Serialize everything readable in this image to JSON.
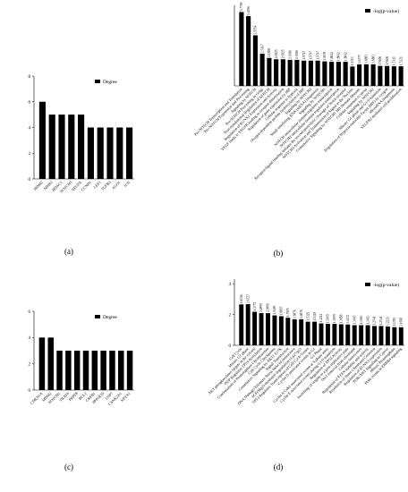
{
  "chart_data": [
    {
      "type": "bar",
      "label": "(a)",
      "categories": [
        "MDM2",
        "MMP2",
        "HDAC1",
        "NOTCH3",
        "VEGFA",
        "CCND1",
        "LEF1",
        "TGFB3",
        "AGO1",
        "JUN"
      ],
      "series": [
        {
          "name": "Degree",
          "color": "#000000",
          "values": [
            6,
            5,
            5,
            5,
            5,
            4,
            4,
            4,
            4,
            4
          ]
        }
      ],
      "ylim": [
        0,
        8
      ],
      "yticks": [
        0,
        2,
        4,
        6,
        8
      ],
      "legend": "upper right",
      "data_labels": false
    },
    {
      "type": "bar",
      "label": "(b)",
      "categories": [
        "Pre-NOTCH Transcription and Translation",
        "Pre-NOTCH Expression and Processing",
        "Signaling by NOTCH",
        "Pre-NOTCH Processing in Golgi",
        "Post-translational Regulation of NOTCH",
        "Regulation of RUNX1 Expression and Activity",
        "VEGF binds to VEGFR leading to receptor dimerization",
        "Regulation of gene expression by HIF",
        "Cellular response to hypoxia",
        "Oxygen-dependent proline hydroxylation of HIF",
        "Signaling by NOTCH3",
        "Small interfering RNA (siRNA) biogenesis",
        "Signaling by NOTCH1",
        "NOTCH intracellular domain regulates transcription",
        "NOTCH2 intracellular domain regulates transcription",
        "Receptor-ligand binding initiates the second proteolytic cleavage of Notch receptor",
        "NOTCH3 Activation and Transmission of Signal to the Nucleus",
        "Constitutive Signaling by NOTCH1 HD Domain Mutants",
        "Cellular responses to stress",
        "Signaling by NOTCH2",
        "Mitotic G1 phase and G1/S transition",
        "Regulation of Hypoxia-inducible Factor (HIF) by oxygen",
        "MicroRNA biogenesis",
        "VEGFR2 mediated cell proliferation"
      ],
      "series": [
        {
          "name": "-log(p-value)",
          "color": "#000000",
          "values": [
            5.7799,
            5.4596,
            3.9554,
            2.5117,
            2.1858,
            2.0825,
            2.0825,
            2.0386,
            2.0386,
            1.9747,
            1.9747,
            1.9747,
            1.9195,
            1.8842,
            1.8842,
            1.8842,
            1.5153,
            1.6777,
            1.6883,
            1.6883,
            1.5606,
            1.5606,
            1.5321,
            1.5321
          ]
        }
      ],
      "ylim": [
        0,
        6.3
      ],
      "legend": "upper right",
      "data_labels": true
    },
    {
      "type": "bar",
      "label": "(c)",
      "categories": [
        "CDKN1A",
        "MDM2",
        "NOTCH1",
        "TRAF6",
        "PRPF8",
        "BCL2",
        "CREB1",
        "PPP1R10",
        "USP7",
        "CSNK2A1",
        "NPTX1"
      ],
      "series": [
        {
          "name": "Degree",
          "color": "#000000",
          "values": [
            4,
            4,
            3,
            3,
            3,
            3,
            3,
            3,
            3,
            3,
            3
          ]
        }
      ],
      "ylim": [
        0,
        6
      ],
      "yticks": [
        0,
        2,
        4,
        6
      ],
      "legend": "upper right",
      "data_labels": false
    },
    {
      "type": "bar",
      "label": "(d)",
      "categories": [
        "Cell Cycle",
        "Mitotic G1 phase",
        "AKT phosphorylates targets in the cytosol",
        "PI5P Regulates TP53 Acetylation",
        "Condensation of Prometaphase Chromosomes",
        "Cell Cycle Checkpoints",
        "Constitutive Signaling by AKT1 E17K",
        "Signal Transduction",
        "DNA Damage/Telomere Stress Induced Senescence",
        "SCF(Skp2)-mediated degradation of p27/p21",
        "TP53 Regulates Transcription of Cell Cycle Genes",
        "Cyclin D associated events in G1",
        "G1 Phase",
        "Cyclin A:Cdk2-associated events at S phase entry",
        "Cyclin E associated events during G1/S transition",
        "Regulation of TP53 Activity",
        "Switching of origins to a post-replicative state",
        "Orc1 removal from chromatin",
        "Cellular Senescence",
        "Regulation of PTEN stability and activity",
        "Resolution of Sister Chromatid Cohesion",
        "Regulation of RUNX3 expression",
        "PI3K/AKT Signaling in Cancer",
        "Mitotic Prometaphase",
        "PI3K events in ERBB4 signaling"
      ],
      "series": [
        {
          "name": "-log(p-value)",
          "color": "#000000",
          "values": [
            2.6546,
            2.6727,
            2.1772,
            2.0899,
            2.0899,
            1.9409,
            1.8897,
            1.7905,
            1.6876,
            1.6876,
            1.5329,
            1.5329,
            1.4214,
            1.3909,
            1.3909,
            1.3658,
            1.3472,
            1.3065,
            1.3063,
            1.3063,
            1.2541,
            1.2541,
            1.2221,
            1.1783,
            1.1698
          ]
        }
      ],
      "ylim": [
        0,
        4.3
      ],
      "yticks": [
        0,
        2,
        4
      ],
      "legend": "upper right",
      "data_labels": true
    }
  ]
}
